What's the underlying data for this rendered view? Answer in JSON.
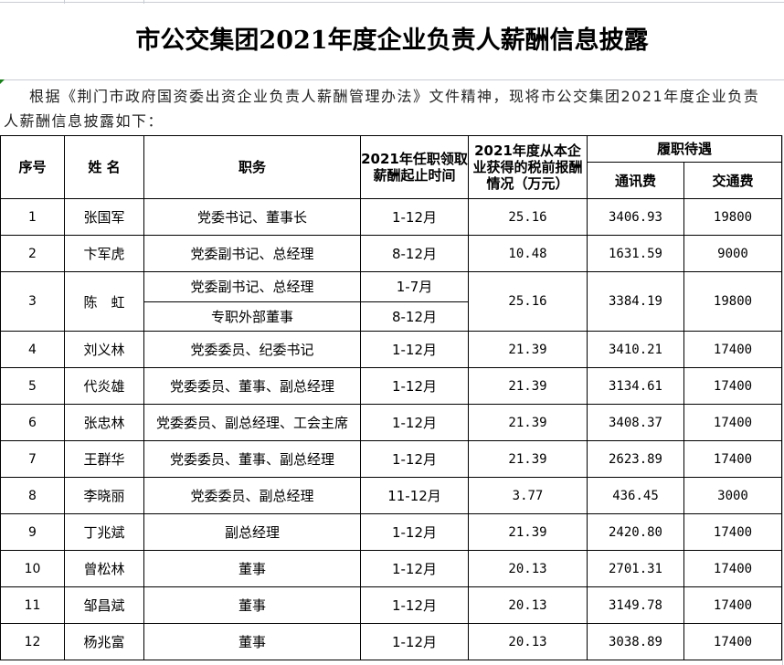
{
  "title": "市公交集团2021年度企业负责人薪酬信息披露",
  "intro": "根据《荆门市政府国资委出资企业负责人薪酬管理办法》文件精神，现将市公交集团2021年度企业负责人薪酬信息披露如下：",
  "headers": {
    "seq": "序号",
    "name": "姓 名",
    "position": "职务",
    "period": "2021年任职领取薪酬起止时间",
    "salary": "2021年度从本企业获得的税前报酬情况（万元）",
    "benefits": "履职待遇",
    "comm": "通讯费",
    "transport": "交通费"
  },
  "rows": [
    {
      "seq": "1",
      "name": "张国军",
      "positions": [
        {
          "position": "党委书记、董事长",
          "period": "1-12月"
        }
      ],
      "salary": "25.16",
      "comm": "3406.93",
      "transport": "19800"
    },
    {
      "seq": "2",
      "name": "卞军虎",
      "positions": [
        {
          "position": "党委副书记、总经理",
          "period": "8-12月"
        }
      ],
      "salary": "10.48",
      "comm": "1631.59",
      "transport": "9000"
    },
    {
      "seq": "3",
      "name": "陈　虹",
      "positions": [
        {
          "position": "党委副书记、总经理",
          "period": "1-7月"
        },
        {
          "position": "专职外部董事",
          "period": "8-12月"
        }
      ],
      "salary": "25.16",
      "comm": "3384.19",
      "transport": "19800"
    },
    {
      "seq": "4",
      "name": "刘义林",
      "positions": [
        {
          "position": "党委委员、纪委书记",
          "period": "1-12月"
        }
      ],
      "salary": "21.39",
      "comm": "3410.21",
      "transport": "17400"
    },
    {
      "seq": "5",
      "name": "代炎雄",
      "positions": [
        {
          "position": "党委委员、董事、副总经理",
          "period": "1-12月"
        }
      ],
      "salary": "21.39",
      "comm": "3134.61",
      "transport": "17400"
    },
    {
      "seq": "6",
      "name": "张忠林",
      "positions": [
        {
          "position": "党委委员、副总经理、工会主席",
          "period": "1-12月"
        }
      ],
      "salary": "21.39",
      "comm": "3408.37",
      "transport": "17400"
    },
    {
      "seq": "7",
      "name": "王群华",
      "positions": [
        {
          "position": "党委委员、董事、副总经理",
          "period": "1-12月"
        }
      ],
      "salary": "21.39",
      "comm": "2623.89",
      "transport": "17400"
    },
    {
      "seq": "8",
      "name": "李晓丽",
      "positions": [
        {
          "position": "党委委员、副总经理",
          "period": "11-12月"
        }
      ],
      "salary": "3.77",
      "comm": "436.45",
      "transport": "3000"
    },
    {
      "seq": "9",
      "name": "丁兆斌",
      "positions": [
        {
          "position": "副总经理",
          "period": "1-12月"
        }
      ],
      "salary": "21.39",
      "comm": "2420.80",
      "transport": "17400"
    },
    {
      "seq": "10",
      "name": "曾松林",
      "positions": [
        {
          "position": "董事",
          "period": "1-12月"
        }
      ],
      "salary": "20.13",
      "comm": "2701.31",
      "transport": "17400"
    },
    {
      "seq": "11",
      "name": "邹昌斌",
      "positions": [
        {
          "position": "董事",
          "period": "1-12月"
        }
      ],
      "salary": "20.13",
      "comm": "3149.78",
      "transport": "17400"
    },
    {
      "seq": "12",
      "name": "杨兆富",
      "positions": [
        {
          "position": "董事",
          "period": "1-12月"
        }
      ],
      "salary": "20.13",
      "comm": "3038.89",
      "transport": "17400"
    }
  ]
}
